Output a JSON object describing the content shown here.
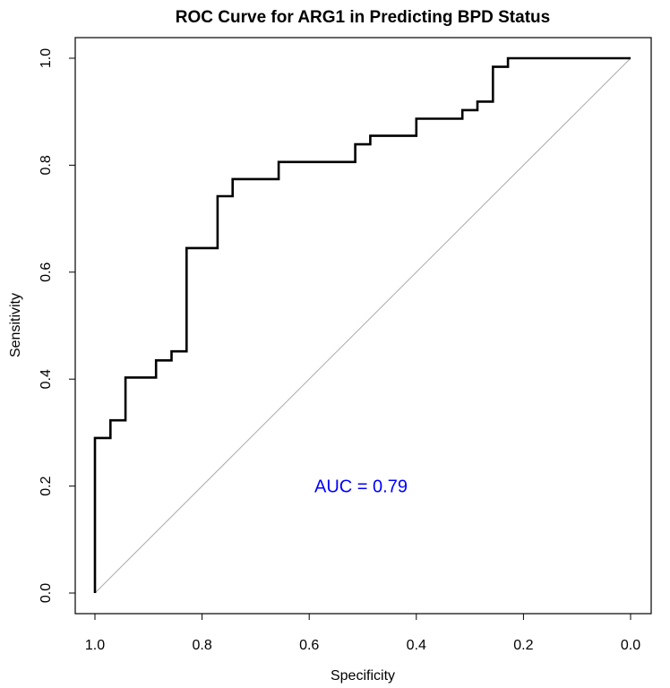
{
  "chart_data": {
    "type": "line",
    "title": "ROC Curve for ARG1 in Predicting BPD Status",
    "xlabel": "Specificity",
    "ylabel": "Sensitivity",
    "xlim": [
      1.0,
      0.0
    ],
    "ylim": [
      0.0,
      1.0
    ],
    "x_reversed": true,
    "grid": false,
    "legend": "none",
    "x_ticks": [
      1.0,
      0.8,
      0.6,
      0.4,
      0.2,
      0.0
    ],
    "x_tick_labels": [
      "1.0",
      "0.8",
      "0.6",
      "0.4",
      "0.2",
      "0.0"
    ],
    "y_ticks": [
      0.0,
      0.2,
      0.4,
      0.6,
      0.8,
      1.0
    ],
    "y_tick_labels": [
      "0.0",
      "0.2",
      "0.4",
      "0.6",
      "0.8",
      "1.0"
    ],
    "series": [
      {
        "color": "#000000",
        "x": [
          1.0,
          1.0,
          0.971,
          0.971,
          0.943,
          0.943,
          0.886,
          0.886,
          0.857,
          0.857,
          0.829,
          0.829,
          0.771,
          0.771,
          0.743,
          0.743,
          0.657,
          0.657,
          0.514,
          0.514,
          0.486,
          0.486,
          0.4,
          0.4,
          0.314,
          0.314,
          0.286,
          0.286,
          0.257,
          0.257,
          0.229,
          0.229,
          0.0
        ],
        "y": [
          0.0,
          0.29,
          0.29,
          0.323,
          0.323,
          0.403,
          0.403,
          0.435,
          0.435,
          0.452,
          0.452,
          0.645,
          0.645,
          0.742,
          0.742,
          0.774,
          0.774,
          0.806,
          0.806,
          0.839,
          0.839,
          0.855,
          0.855,
          0.887,
          0.887,
          0.903,
          0.903,
          0.919,
          0.919,
          0.984,
          0.984,
          1.0,
          1.0
        ]
      }
    ],
    "reference_line": {
      "x": [
        1.0,
        0.0
      ],
      "y": [
        0.0,
        1.0
      ],
      "color": "#aaaaaa"
    },
    "annotation": {
      "text": "AUC = 0.79",
      "x": 0.5,
      "y": 0.2,
      "color": "#0000ff"
    }
  }
}
